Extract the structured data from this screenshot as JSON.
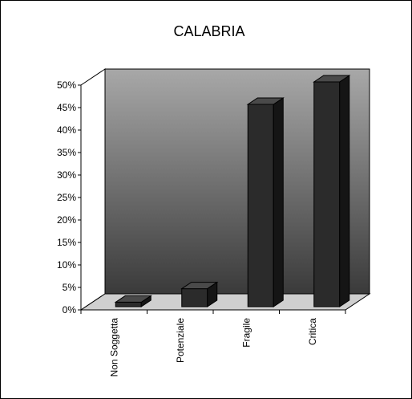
{
  "chart_data": {
    "type": "bar",
    "title": "CALABRIA",
    "categories": [
      "Non Soggetta",
      "Potenziale",
      "Fragile",
      "Critica"
    ],
    "values": [
      1,
      4,
      45,
      50
    ],
    "value_unit": "%",
    "ylim": [
      0,
      50
    ],
    "yticks": [
      "0%",
      "5%",
      "10%",
      "15%",
      "20%",
      "25%",
      "30%",
      "35%",
      "40%",
      "45%",
      "50%"
    ],
    "xlabel": "",
    "ylabel": "",
    "grid": false,
    "legend": "none",
    "style": "3d-column",
    "colors": {
      "bar_front": "#2b2b2b",
      "bar_side": "#151515",
      "bar_top": "#4a4a4a",
      "wall_top": "#a8a8a8",
      "wall_bottom": "#3a3a3a",
      "floor": "#cfcfcf"
    }
  }
}
